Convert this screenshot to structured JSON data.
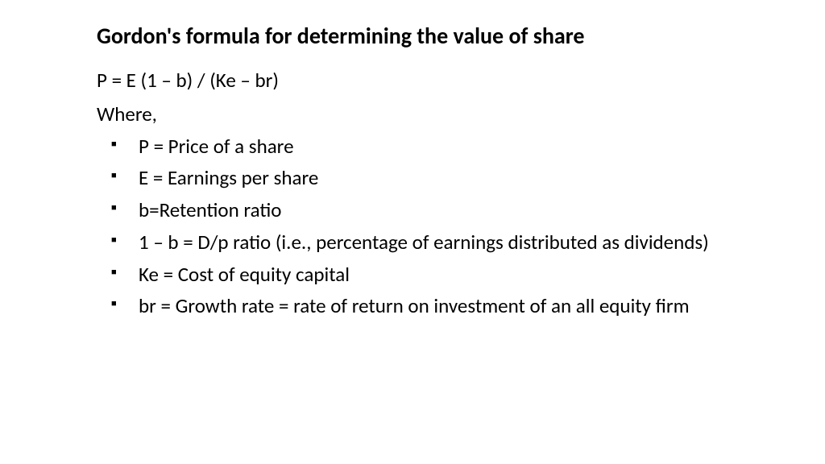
{
  "slide": {
    "title": "Gordon's formula for determining the value of share",
    "formula": "P = E (1 – b) / (Ke – br)",
    "where_label": "Where,",
    "bullets": [
      "P = Price of a share",
      "E = Earnings per share",
      "b=Retention ratio",
      "1 – b = D/p ratio (i.e., percentage of earnings distributed as dividends)",
      "Ke = Cost of equity capital",
      " br = Growth rate = rate of return on investment of an all equity firm"
    ],
    "styling": {
      "background_color": "#ffffff",
      "text_color": "#000000",
      "title_fontsize": 28,
      "title_weight": "bold",
      "body_fontsize": 25,
      "bullet_marker": "■",
      "bullet_marker_color": "#000000",
      "font_family": "Calibri"
    }
  }
}
